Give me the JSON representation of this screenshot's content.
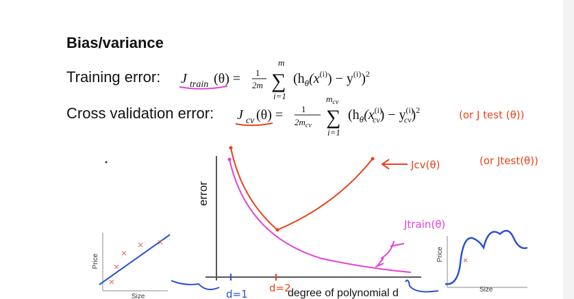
{
  "slide": {
    "title": "Bias/variance",
    "training_label": "Training error:",
    "training_formula": [
      "J",
      "train",
      "(θ) =",
      "1",
      "2m",
      "∑",
      "m",
      "i=1",
      "(h",
      "θ",
      "(x",
      "(i)",
      ") − y",
      "(i)",
      ")",
      "2"
    ],
    "cv_label": "Cross validation error:",
    "cv_formula": [
      "J",
      "cv",
      "(θ) =",
      "1",
      "2m",
      "cv",
      "∑",
      "m",
      "cv",
      "i=1",
      "(h",
      "θ",
      "(x",
      "(i)",
      "cv",
      ") − y",
      "(i)",
      "cv",
      ")",
      "2"
    ],
    "cv_note": "(or J test (θ))",
    "plot": {
      "y_label": "error",
      "x_label": "degree of polynomial d",
      "cv_curve_note": "Jcv(θ)",
      "cv_curve_alt": "(or Jtest(θ))",
      "train_curve_note": "Jtrain(θ)",
      "d1": "d=1",
      "d2": "d=2"
    },
    "left_plot": {
      "y_label": "Price",
      "x_label": "Size"
    },
    "right_plot": {
      "y_label": "Price",
      "x_label": "Size"
    }
  }
}
